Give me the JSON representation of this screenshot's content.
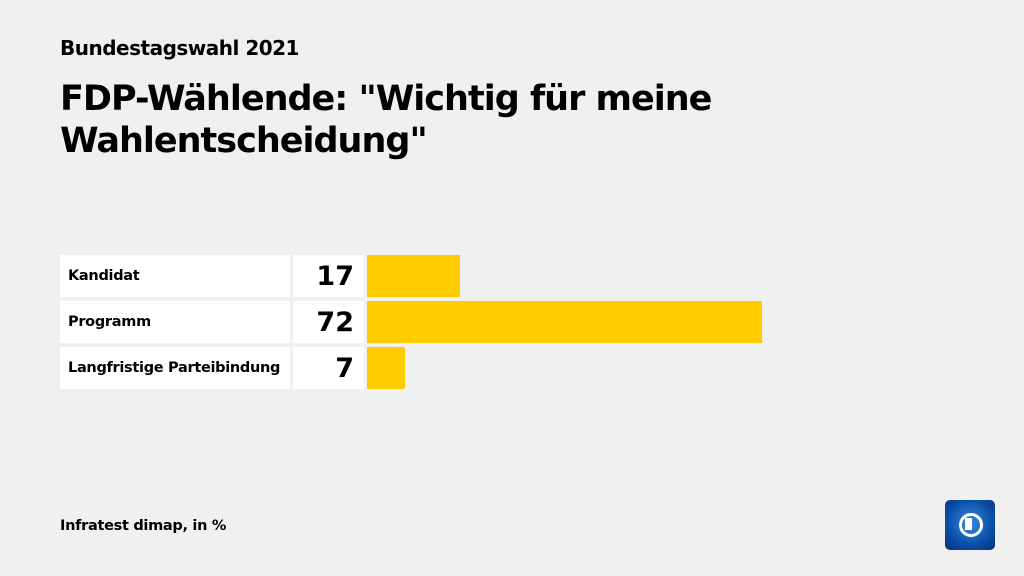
{
  "header": {
    "supertitle": "Bundestagswahl 2021",
    "title": "FDP-Wählende: \"Wichtig für meine Wahlentscheidung\""
  },
  "footer": {
    "source": "Infratest dimap, in %"
  },
  "colors": {
    "bar": "#ffcc00",
    "background": "#f0f0f0"
  },
  "logo": "tagesschau-logo",
  "chart_data": {
    "type": "bar",
    "orientation": "horizontal",
    "categories": [
      "Kandidat",
      "Programm",
      "Langfristige Parteibindung"
    ],
    "values": [
      17,
      72,
      7
    ],
    "unit": "%",
    "grid": false
  }
}
